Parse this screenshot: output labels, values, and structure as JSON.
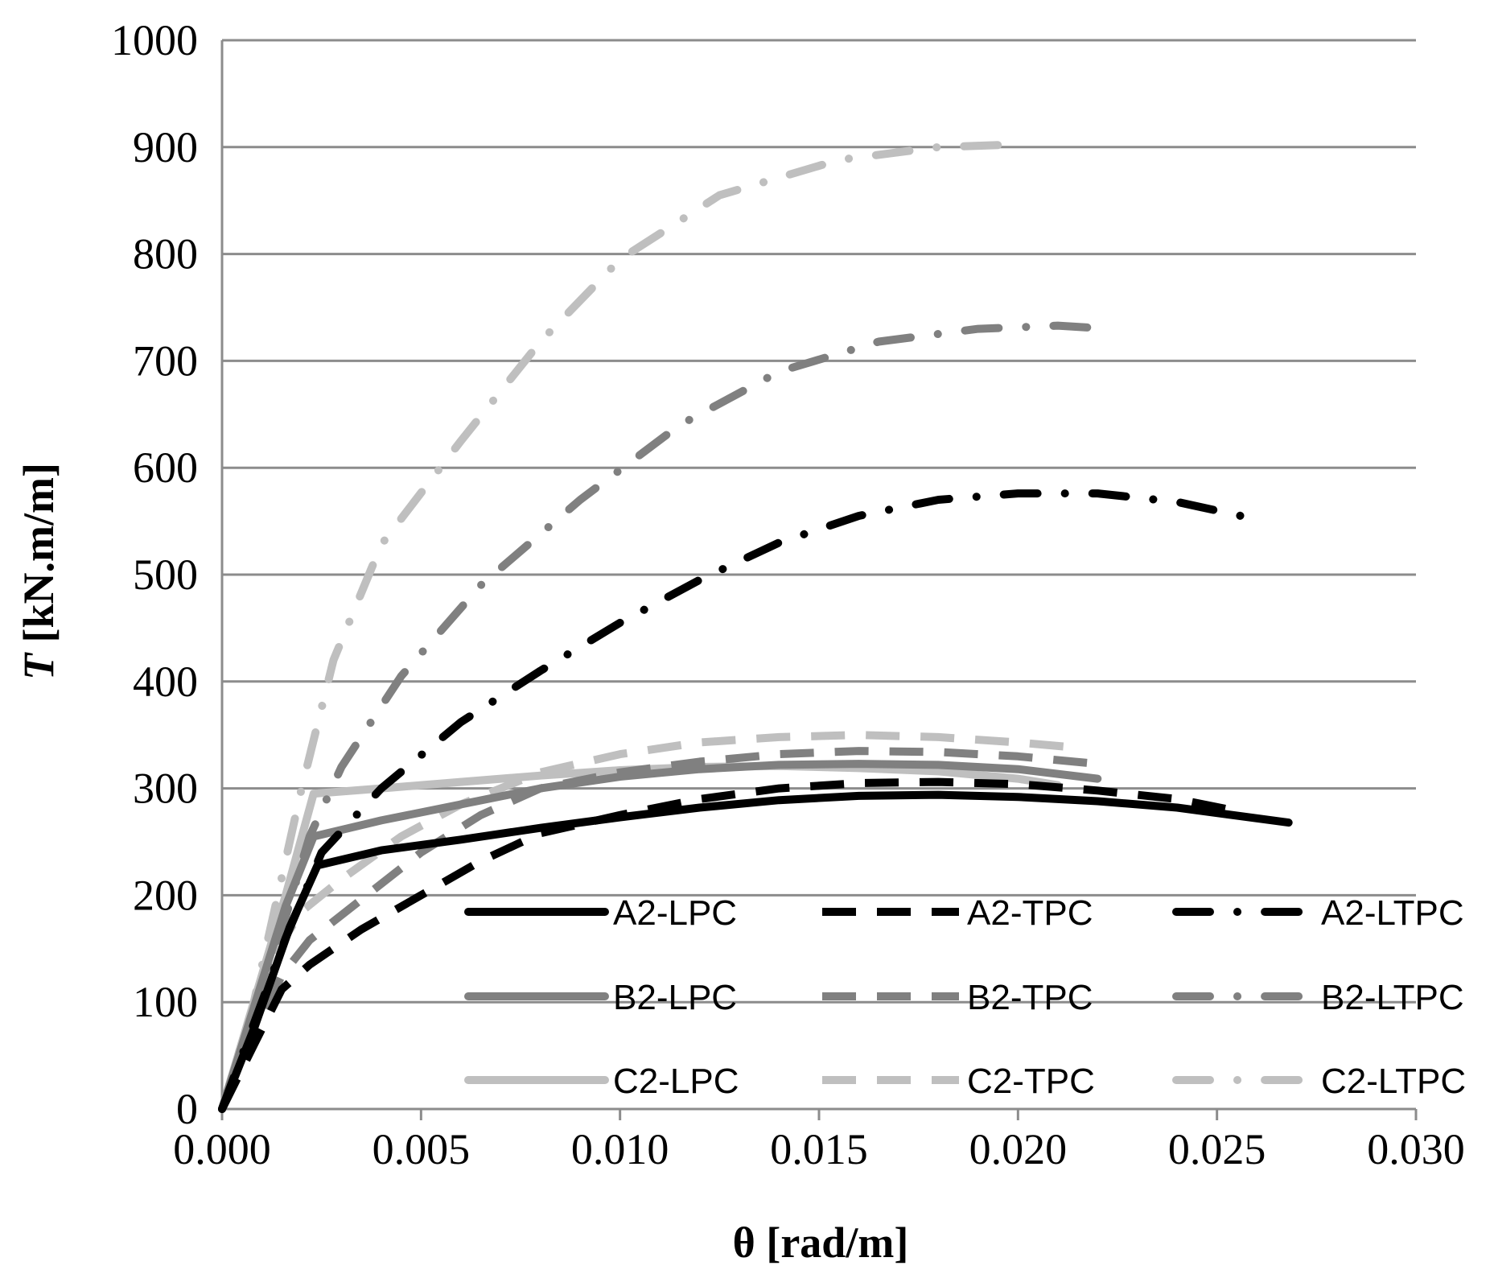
{
  "chart_data": {
    "type": "line",
    "xlabel": "θ [rad/m]",
    "ylabel_italic": "T",
    "ylabel_rest": " [kN.m/m]",
    "xlim": [
      0,
      0.03
    ],
    "ylim": [
      0,
      1000
    ],
    "xticks": [
      "0.000",
      "0.005",
      "0.010",
      "0.015",
      "0.020",
      "0.025",
      "0.030"
    ],
    "yticks": [
      "0",
      "100",
      "200",
      "300",
      "400",
      "500",
      "600",
      "700",
      "800",
      "900",
      "1000"
    ],
    "grid": "horizontal",
    "legend_position": "lower-right",
    "series": [
      {
        "name": "A2-LPC",
        "color": "#000000",
        "dash": "solid",
        "points": [
          [
            0,
            0
          ],
          [
            0.0008,
            75
          ],
          [
            0.0017,
            170
          ],
          [
            0.0024,
            228
          ],
          [
            0.004,
            242
          ],
          [
            0.006,
            252
          ],
          [
            0.008,
            263
          ],
          [
            0.01,
            273
          ],
          [
            0.012,
            282
          ],
          [
            0.014,
            289
          ],
          [
            0.016,
            293
          ],
          [
            0.018,
            294
          ],
          [
            0.02,
            292
          ],
          [
            0.022,
            288
          ],
          [
            0.024,
            282
          ],
          [
            0.0268,
            268
          ]
        ]
      },
      {
        "name": "A2-TPC",
        "color": "#000000",
        "dash": "dash",
        "points": [
          [
            0,
            0
          ],
          [
            0.0008,
            60
          ],
          [
            0.0015,
            112
          ],
          [
            0.0022,
            135
          ],
          [
            0.0035,
            168
          ],
          [
            0.005,
            200
          ],
          [
            0.0065,
            232
          ],
          [
            0.008,
            258
          ],
          [
            0.01,
            275
          ],
          [
            0.012,
            290
          ],
          [
            0.014,
            300
          ],
          [
            0.016,
            305
          ],
          [
            0.018,
            306
          ],
          [
            0.02,
            304
          ],
          [
            0.022,
            298
          ],
          [
            0.024,
            290
          ],
          [
            0.0256,
            278
          ]
        ]
      },
      {
        "name": "A2-LTPC",
        "color": "#000000",
        "dash": "dashdot",
        "points": [
          [
            0,
            0
          ],
          [
            0.0008,
            80
          ],
          [
            0.0016,
            160
          ],
          [
            0.0025,
            240
          ],
          [
            0.004,
            300
          ],
          [
            0.006,
            362
          ],
          [
            0.008,
            410
          ],
          [
            0.01,
            455
          ],
          [
            0.012,
            495
          ],
          [
            0.014,
            530
          ],
          [
            0.016,
            555
          ],
          [
            0.018,
            570
          ],
          [
            0.02,
            576
          ],
          [
            0.022,
            576
          ],
          [
            0.024,
            568
          ],
          [
            0.0256,
            555
          ]
        ]
      },
      {
        "name": "B2-LPC",
        "color": "#808080",
        "dash": "solid",
        "points": [
          [
            0,
            0
          ],
          [
            0.0008,
            95
          ],
          [
            0.0016,
            190
          ],
          [
            0.0023,
            255
          ],
          [
            0.004,
            270
          ],
          [
            0.006,
            285
          ],
          [
            0.008,
            300
          ],
          [
            0.01,
            311
          ],
          [
            0.012,
            318
          ],
          [
            0.014,
            322
          ],
          [
            0.016,
            323
          ],
          [
            0.018,
            322
          ],
          [
            0.02,
            318
          ],
          [
            0.022,
            309
          ]
        ]
      },
      {
        "name": "B2-TPC",
        "color": "#808080",
        "dash": "dash",
        "points": [
          [
            0,
            0
          ],
          [
            0.0008,
            70
          ],
          [
            0.0015,
            125
          ],
          [
            0.0022,
            158
          ],
          [
            0.0035,
            196
          ],
          [
            0.005,
            240
          ],
          [
            0.0065,
            275
          ],
          [
            0.008,
            300
          ],
          [
            0.01,
            315
          ],
          [
            0.012,
            325
          ],
          [
            0.014,
            332
          ],
          [
            0.016,
            335
          ],
          [
            0.018,
            334
          ],
          [
            0.02,
            330
          ],
          [
            0.022,
            323
          ]
        ]
      },
      {
        "name": "B2-LTPC",
        "color": "#808080",
        "dash": "dashdot",
        "points": [
          [
            0,
            0
          ],
          [
            0.0008,
            90
          ],
          [
            0.0016,
            180
          ],
          [
            0.0022,
            255
          ],
          [
            0.003,
            320
          ],
          [
            0.0045,
            405
          ],
          [
            0.0065,
            490
          ],
          [
            0.009,
            570
          ],
          [
            0.0115,
            640
          ],
          [
            0.014,
            690
          ],
          [
            0.0165,
            718
          ],
          [
            0.019,
            730
          ],
          [
            0.021,
            733
          ],
          [
            0.0223,
            730
          ]
        ]
      },
      {
        "name": "C2-LPC",
        "color": "#bfbfbf",
        "dash": "solid",
        "points": [
          [
            0,
            0
          ],
          [
            0.0008,
            100
          ],
          [
            0.0016,
            200
          ],
          [
            0.0023,
            295
          ],
          [
            0.004,
            300
          ],
          [
            0.006,
            306
          ],
          [
            0.008,
            312
          ],
          [
            0.01,
            317
          ],
          [
            0.012,
            320
          ],
          [
            0.014,
            321
          ],
          [
            0.016,
            319
          ],
          [
            0.018,
            316
          ],
          [
            0.02,
            309
          ],
          [
            0.021,
            303
          ]
        ]
      },
      {
        "name": "C2-TPC",
        "color": "#bfbfbf",
        "dash": "dash",
        "points": [
          [
            0,
            0
          ],
          [
            0.0008,
            85
          ],
          [
            0.0014,
            150
          ],
          [
            0.002,
            185
          ],
          [
            0.003,
            215
          ],
          [
            0.0045,
            255
          ],
          [
            0.006,
            285
          ],
          [
            0.008,
            315
          ],
          [
            0.01,
            332
          ],
          [
            0.012,
            343
          ],
          [
            0.014,
            348
          ],
          [
            0.016,
            350
          ],
          [
            0.018,
            348
          ],
          [
            0.02,
            343
          ],
          [
            0.0215,
            338
          ]
        ]
      },
      {
        "name": "C2-LTPC",
        "color": "#bfbfbf",
        "dash": "dashdot",
        "points": [
          [
            0,
            0
          ],
          [
            0.0008,
            100
          ],
          [
            0.0014,
            200
          ],
          [
            0.002,
            300
          ],
          [
            0.0028,
            420
          ],
          [
            0.004,
            528
          ],
          [
            0.006,
            625
          ],
          [
            0.008,
            718
          ],
          [
            0.01,
            795
          ],
          [
            0.0125,
            855
          ],
          [
            0.0155,
            888
          ],
          [
            0.018,
            900
          ],
          [
            0.0196,
            902
          ]
        ]
      }
    ]
  }
}
